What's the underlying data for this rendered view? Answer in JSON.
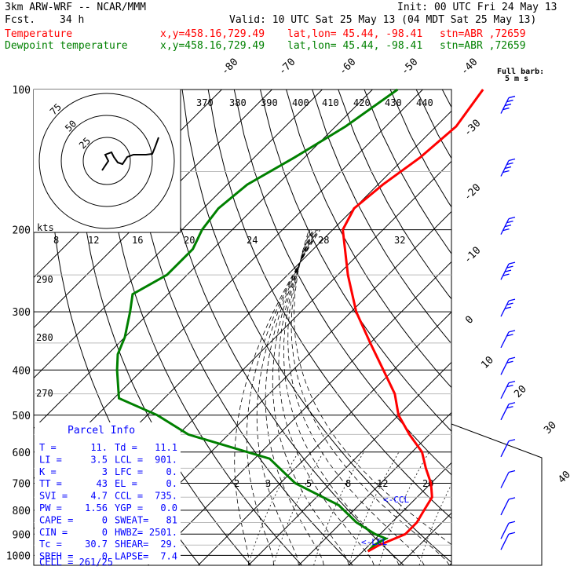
{
  "header": {
    "model": "3km ARW-WRF -- NCAR/MMM",
    "init": "Init: 00 UTC Fri 24 May 13",
    "fcst_label": "Fcst.",
    "fcst_value": "34 h",
    "valid": "Valid: 10 UTC Sat 25 May 13 (04 MDT Sat 25 May 13)",
    "temp_line": {
      "name": "Temperature",
      "xy": "x,y=458.16,729.49",
      "latlon": "lat,lon= 45.44, -98.41",
      "stn": "stn=ABR ,72659"
    },
    "dew_line": {
      "name": "Dewpoint temperature",
      "xy": "x,y=458.16,729.49",
      "latlon": "lat,lon= 45.44, -98.41",
      "stn": "stn=ABR ,72659"
    }
  },
  "colors": {
    "temperature": "#ff0000",
    "dewpoint": "#008000",
    "parcel_text": "#0000ff",
    "wind": "#0000ff"
  },
  "barb_legend": {
    "title": "Full barb:",
    "value": "5 m s"
  },
  "hodograph": {
    "unit_label": "kts",
    "rings": [
      "25",
      "50",
      "75"
    ]
  },
  "parcel_info": {
    "title": "Parcel Info",
    "rows": [
      [
        "T  =",
        "11.",
        "Td =",
        "11.1"
      ],
      [
        "LI =",
        "3.5",
        "LCL =",
        "901."
      ],
      [
        "K  =",
        "3",
        "LFC =",
        "0."
      ],
      [
        "TT =",
        "43",
        "EL  =",
        "0."
      ],
      [
        "SVI =",
        "4.7",
        "CCL =",
        "735."
      ],
      [
        "PW =",
        "1.56",
        "YGP =",
        "0.0"
      ],
      [
        "CAPE =",
        "0",
        "SWEAT=",
        "81"
      ],
      [
        "CIN =",
        "0",
        "HWBZ=",
        "2501."
      ],
      [
        "Tc =",
        "30.7",
        "SHEAR=",
        "29."
      ],
      [
        "SREH =",
        "0",
        "LAPSE=",
        "7.4"
      ]
    ],
    "cell": "CELL = 261/25"
  },
  "markers": {
    "ccl": "<-CCL",
    "lcl": "<-LCL"
  },
  "chart_data": {
    "type": "line",
    "title": "",
    "y_axis": {
      "label": "pressure (hPa)",
      "scale": "log",
      "ticks": [
        100,
        200,
        300,
        400,
        500,
        600,
        700,
        800,
        900,
        1000
      ]
    },
    "isotherm_labels": [
      "-80",
      "-70",
      "-60",
      "-50",
      "-40",
      "-30",
      "-20",
      "-10",
      "0",
      "10",
      "20",
      "30",
      "40"
    ],
    "theta_labels": [
      "370",
      "380",
      "390",
      "400",
      "410",
      "420",
      "430",
      "440",
      "290",
      "280",
      "270"
    ],
    "mixing_ratio_labels_upper": [
      "8",
      "12",
      "16",
      "20",
      "24",
      "28",
      "32"
    ],
    "mixing_ratio_labels_lower": [
      "2",
      "3",
      "5",
      "8",
      "12",
      "20"
    ],
    "series": [
      {
        "name": "Temperature",
        "points": [
          [
            100,
            -58
          ],
          [
            120,
            -56
          ],
          [
            140,
            -57
          ],
          [
            160,
            -59
          ],
          [
            180,
            -60
          ],
          [
            200,
            -58
          ],
          [
            250,
            -48
          ],
          [
            300,
            -39
          ],
          [
            350,
            -30
          ],
          [
            400,
            -22
          ],
          [
            450,
            -15
          ],
          [
            500,
            -10
          ],
          [
            550,
            -4
          ],
          [
            600,
            2
          ],
          [
            650,
            6
          ],
          [
            700,
            10
          ],
          [
            750,
            13
          ],
          [
            800,
            14
          ],
          [
            850,
            15
          ],
          [
            900,
            15
          ],
          [
            950,
            12
          ],
          [
            980,
            11
          ]
        ]
      },
      {
        "name": "Dewpoint temperature",
        "points": [
          [
            100,
            -75
          ],
          [
            120,
            -78
          ],
          [
            140,
            -82
          ],
          [
            160,
            -86
          ],
          [
            180,
            -87
          ],
          [
            200,
            -86
          ],
          [
            220,
            -84
          ],
          [
            250,
            -84
          ],
          [
            275,
            -87
          ],
          [
            300,
            -84
          ],
          [
            340,
            -80
          ],
          [
            370,
            -78
          ],
          [
            400,
            -75
          ],
          [
            460,
            -69
          ],
          [
            500,
            -58
          ],
          [
            550,
            -48
          ],
          [
            620,
            -27
          ],
          [
            700,
            -17
          ],
          [
            780,
            -4
          ],
          [
            850,
            3
          ],
          [
            900,
            9
          ],
          [
            920,
            12
          ],
          [
            950,
            11
          ],
          [
            980,
            11
          ]
        ]
      }
    ],
    "wind_barbs": [
      {
        "p": 110,
        "speed_ms": 20
      },
      {
        "p": 150,
        "speed_ms": 22
      },
      {
        "p": 200,
        "speed_ms": 22
      },
      {
        "p": 250,
        "speed_ms": 18
      },
      {
        "p": 300,
        "speed_ms": 15
      },
      {
        "p": 350,
        "speed_ms": 12
      },
      {
        "p": 400,
        "speed_ms": 10
      },
      {
        "p": 450,
        "speed_ms": 9
      },
      {
        "p": 500,
        "speed_ms": 8
      },
      {
        "p": 600,
        "speed_ms": 7
      },
      {
        "p": 700,
        "speed_ms": 7
      },
      {
        "p": 800,
        "speed_ms": 6
      },
      {
        "p": 900,
        "speed_ms": 6
      },
      {
        "p": 950,
        "speed_ms": 5
      }
    ],
    "grid": true,
    "legend": "top"
  }
}
